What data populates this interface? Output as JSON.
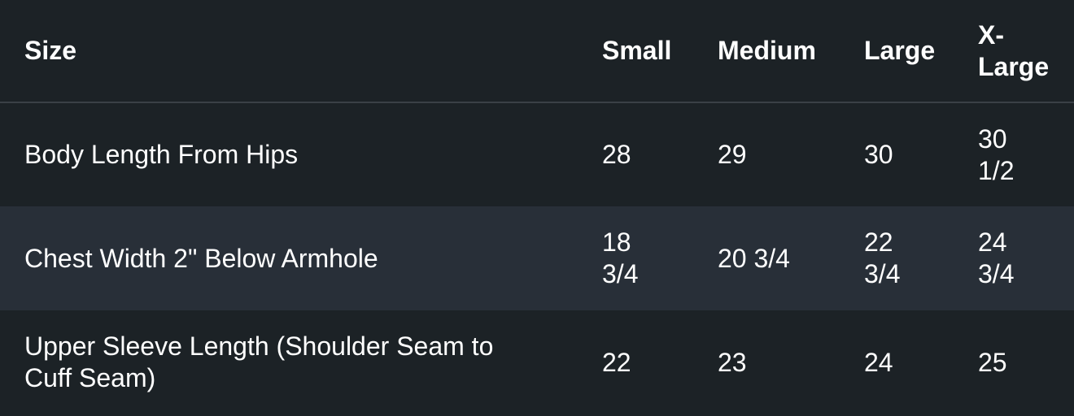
{
  "table": {
    "columns": {
      "label": "Size",
      "small": "Small",
      "medium": "Medium",
      "large": "Large",
      "xlarge": "X-\nLarge"
    },
    "rows": [
      {
        "label": "Body Length From Hips",
        "values": [
          "28",
          "29",
          "30",
          "30\n1/2"
        ]
      },
      {
        "label": "Chest Width 2\" Below Armhole",
        "values": [
          "18\n3/4",
          "20 3/4",
          "22\n3/4",
          "24\n3/4"
        ]
      },
      {
        "label": "Upper Sleeve Length (Shoulder Seam to\nCuff Seam)",
        "values": [
          "22",
          "23",
          "24",
          "25"
        ]
      }
    ],
    "colors": {
      "background": "#1c2226",
      "stripe_row": "#282f38",
      "header_divider": "#3a4046",
      "text": "#ffffff"
    }
  }
}
